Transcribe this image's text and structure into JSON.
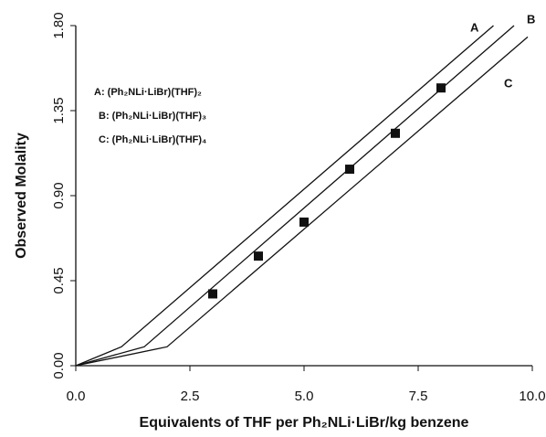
{
  "chart_data": {
    "type": "line",
    "x_label": "Equivalents of THF per Ph₂NLi·LiBr/kg benzene",
    "y_label": "Observed Molality",
    "xlim": [
      0,
      10
    ],
    "ylim": [
      0,
      1.8
    ],
    "xticks": [
      {
        "value": 0,
        "label": "0.0"
      },
      {
        "value": 2.5,
        "label": "2.5"
      },
      {
        "value": 5,
        "label": "5.0"
      },
      {
        "value": 7.5,
        "label": "7.5"
      },
      {
        "value": 10,
        "label": "10.0"
      }
    ],
    "yticks": [
      {
        "value": 0,
        "label": "0.00"
      },
      {
        "value": 0.45,
        "label": "0.45"
      },
      {
        "value": 0.9,
        "label": "0.90"
      },
      {
        "value": 1.35,
        "label": "1.35"
      },
      {
        "value": 1.8,
        "label": "1.80"
      }
    ],
    "series": [
      {
        "name": "A",
        "legend": "A:  (Ph₂NLi·LiBr)(THF)₂",
        "color": "#111111",
        "style": "line",
        "x": [
          0,
          1,
          9.15
        ],
        "values": [
          0,
          0.1,
          1.8
        ]
      },
      {
        "name": "B",
        "legend": "B:  (Ph₂NLi·LiBr)(THF)₃",
        "color": "#111111",
        "style": "line",
        "x": [
          0,
          1.5,
          9.6
        ],
        "values": [
          0,
          0.1,
          1.8
        ]
      },
      {
        "name": "C",
        "legend": "C:  (Ph₂NLi·LiBr)(THF)₄",
        "color": "#111111",
        "style": "line",
        "x": [
          0,
          2,
          9.9
        ],
        "values": [
          0,
          0.1,
          1.74
        ]
      },
      {
        "color": "#111111",
        "style": "markers",
        "x": [
          3,
          4,
          5,
          6,
          7,
          8
        ],
        "values": [
          0.38,
          0.58,
          0.76,
          1.04,
          1.23,
          1.47
        ]
      }
    ]
  }
}
